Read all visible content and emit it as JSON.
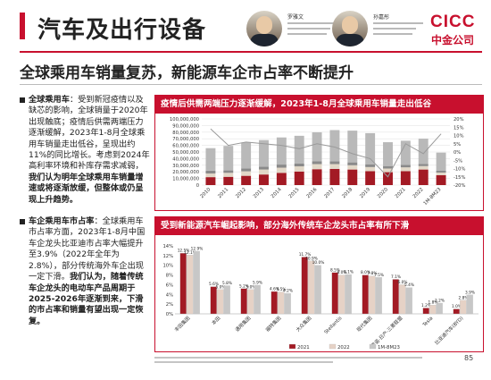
{
  "header": {
    "title": "汽车及出行设备",
    "analyst1_name": "罗雅文",
    "analyst2_name": "孙嘉彤",
    "logo_en": "CICC",
    "logo_cn": "中金公司"
  },
  "headline": "全球乘用车销量复苏，新能源车企市占率不断提升",
  "left": {
    "p1_label": "全球乘用车",
    "p1_text": "：受到新冠疫情以及缺芯的影响，全球销量于2020年出现触底；疫情后供需两端压力逐渐缓解，2023年1-8月全球乘用车销量走出低谷，呈现出约11%的同比增长。考虑到2024年高利率环境和补库存需求减弱，",
    "p1_emph": "我们认为明年全球乘用车销量增速或将逐渐放缓，但整体或仍呈现上升趋势。",
    "p2_label": "车企乘用车市占率",
    "p2_text": "：全球乘用车市占率方面，2023年1-8月中国车企龙头比亚迪市占率大幅提升至3.9%（2022年全年为2.8%），部分传统海外车企出现一定下滑。",
    "p2_emph": "我们认为，随着传统车企龙头的电动车产品周期于2025-2026年逐渐到来，下滑的市占率和销量有望出现一定恢复。"
  },
  "panels": {
    "p1_title": "疫情后供需两端压力逐渐缓解，2023年1-8月全球乘用车销量走出低谷",
    "p2_title": "受到新能源汽车崛起影响，部分海外传统车企龙头市占率有所下滑"
  },
  "colors": {
    "accent": "#c8102e",
    "china": "#a31a24",
    "us": "#e2d8c8",
    "japan": "#8a8a8a",
    "other": "#b9b9b9",
    "y2021": "#a31a24",
    "y2022": "#e6d2c6",
    "y2023": "#c7c7c7"
  },
  "chart_data": [
    {
      "type": "bar",
      "title": "疫情后供需两端压力逐渐缓解，2023年1-8月全球乘用车销量走出低谷",
      "categories": [
        "2010",
        "2011",
        "2012",
        "2013",
        "2014",
        "2015",
        "2016",
        "2017",
        "2018",
        "2019",
        "2020",
        "2021",
        "2022",
        "1M-8M23"
      ],
      "series": [
        {
          "name": "中国",
          "values": [
            12000000,
            12500000,
            14000000,
            16000000,
            18500000,
            20500000,
            24000000,
            24500000,
            23500000,
            21000000,
            19500000,
            21000000,
            23500000,
            15000000
          ]
        },
        {
          "name": "美国",
          "values": [
            5500000,
            6000000,
            6800000,
            7500000,
            7800000,
            7800000,
            7700000,
            7200000,
            6500000,
            6200000,
            5500000,
            5800000,
            5200000,
            3900000
          ]
        },
        {
          "name": "日本",
          "values": [
            4300000,
            3700000,
            4500000,
            4500000,
            4700000,
            4200000,
            4100000,
            4400000,
            4300000,
            4300000,
            3800000,
            3700000,
            3400000,
            2700000
          ]
        },
        {
          "name": "其他",
          "values": [
            34000000,
            37000000,
            39000000,
            40000000,
            41000000,
            42000000,
            44000000,
            47000000,
            48000000,
            47000000,
            36000000,
            36500000,
            38000000,
            27500000
          ]
        }
      ],
      "line_series": [
        {
          "values": [
            14,
            4,
            6,
            5,
            4,
            2,
            5,
            3,
            -1,
            -4,
            -15,
            5,
            -1,
            11
          ]
        }
      ],
      "ylim": [
        0,
        100000000
      ],
      "y2lim": [
        -20,
        20
      ],
      "y_ticks": [
        "100,000,000",
        "90,000,000",
        "80,000,000",
        "70,000,000",
        "60,000,000",
        "50,000,000",
        "40,000,000",
        "30,000,000",
        "20,000,000",
        "10,000,000",
        "0"
      ],
      "y2_ticks": [
        "20%",
        "15%",
        "10%",
        "5%",
        "0%",
        "-5%",
        "-10%",
        "-15%",
        "-20%"
      ]
    },
    {
      "type": "bar",
      "title": "受到新能源汽车崛起影响，部分海外传统车企龙头市占率有所下滑",
      "categories": [
        "丰田集团",
        "本田",
        "通用集团",
        "福特集团",
        "大众集团",
        "Stellantis",
        "现代集团",
        "雷诺-日产-三菱联盟",
        "Tesla",
        "比亚迪汽车(BYD)"
      ],
      "series": [
        {
          "name": "2021",
          "values": [
            12.5,
            5.6,
            5.2,
            4.6,
            11.7,
            8.5,
            8.0,
            7.1,
            1.2,
            1.0
          ]
        },
        {
          "name": "2022",
          "values": [
            12.1,
            5.0,
            5.0,
            4.5,
            10.9,
            8.0,
            7.8,
            6.0,
            1.8,
            2.8
          ]
        },
        {
          "name": "1M-8M23",
          "values": [
            12.9,
            5.8,
            5.9,
            4.2,
            10.0,
            8.1,
            7.5,
            5.4,
            2.2,
            3.9
          ]
        }
      ],
      "data_labels": [
        [
          "12.5%",
          "12.1%",
          "12.9%"
        ],
        [
          "5.6%",
          "5.0%",
          "5.8%"
        ],
        [
          "5.2%",
          "5.0%",
          "5.9%"
        ],
        [
          "4.6%",
          "4.5%",
          "4.2%"
        ],
        [
          "11.7%",
          "10.9%",
          "10.0%"
        ],
        [
          "8.5%",
          "8.0%",
          "8.1%"
        ],
        [
          "8.0%",
          "7.8%",
          "7.5%"
        ],
        [
          "7.1%",
          "6.0%",
          "5.4%"
        ],
        [
          "1.2%",
          "1.8%",
          "2.2%"
        ],
        [
          "1.0%",
          "2.8%",
          "3.9%"
        ]
      ],
      "ylim": [
        0,
        14
      ],
      "y_ticks": [
        "14%",
        "12%",
        "10%",
        "8%",
        "6%",
        "4%",
        "2%",
        "0%"
      ]
    }
  ],
  "footnote": {
    "page": "85"
  }
}
